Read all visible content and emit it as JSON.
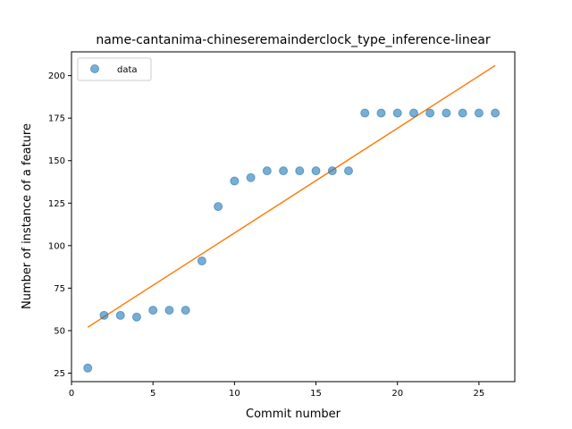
{
  "chart_data": {
    "type": "scatter",
    "title": "name-cantanima-chineseremainderclock_type_inference-linear",
    "xlabel": "Commit number",
    "ylabel": "Number of instance of a feature",
    "xlim": [
      0,
      27.2
    ],
    "ylim": [
      20,
      214
    ],
    "xticks": [
      0,
      5,
      10,
      15,
      20,
      25
    ],
    "yticks": [
      25,
      50,
      75,
      100,
      125,
      150,
      175,
      200
    ],
    "legend_position": "upper-left",
    "colors": {
      "data": "#1f77b4",
      "fit": "#ff7f0e"
    },
    "series": [
      {
        "name": "data",
        "kind": "points",
        "x": [
          1,
          2,
          3,
          4,
          5,
          6,
          7,
          8,
          9,
          10,
          11,
          12,
          13,
          14,
          15,
          16,
          17,
          18,
          19,
          20,
          21,
          22,
          23,
          24,
          25,
          26
        ],
        "y": [
          28,
          59,
          59,
          58,
          62,
          62,
          62,
          91,
          123,
          138,
          140,
          144,
          144,
          144,
          144,
          144,
          144,
          178,
          178,
          178,
          178,
          178,
          178,
          178,
          178,
          178
        ]
      },
      {
        "kind": "line",
        "x": [
          1,
          26
        ],
        "y": [
          52,
          206
        ]
      }
    ]
  }
}
